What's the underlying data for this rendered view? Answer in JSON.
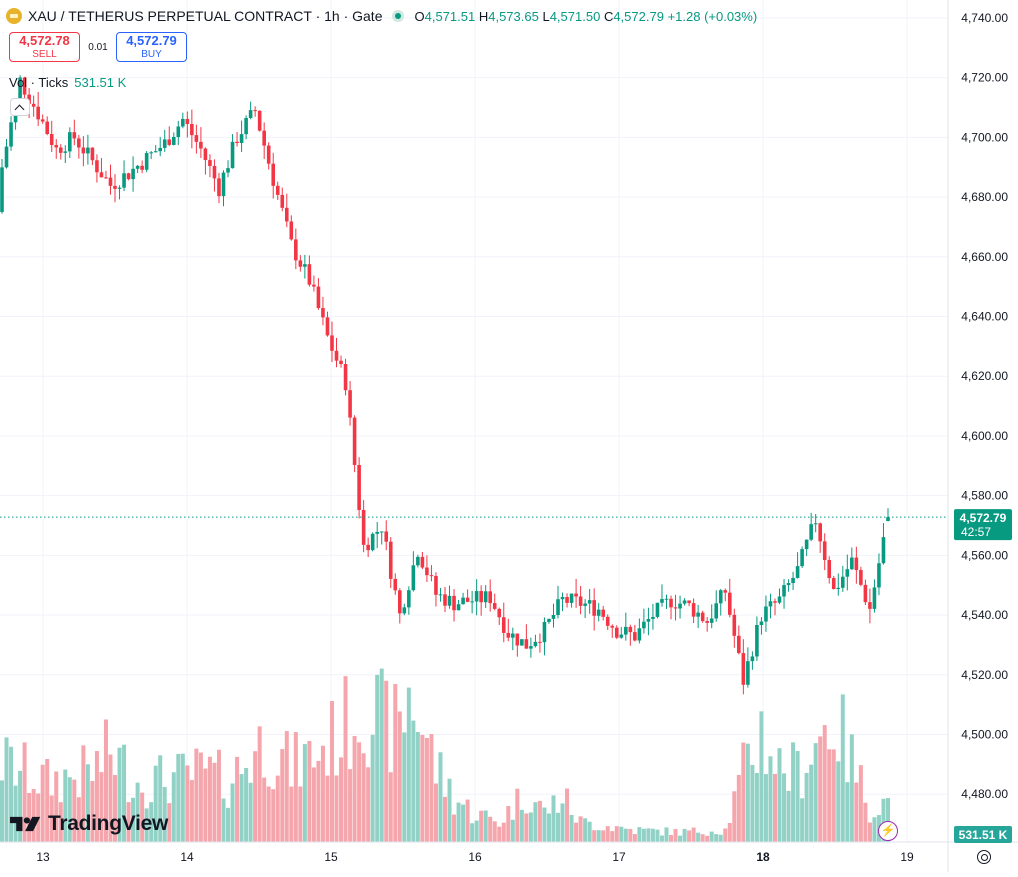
{
  "header": {
    "symbol": "XAU / TETHERUS PERPETUAL CONTRACT · 1h · Gate",
    "open_label": "O",
    "open": "4,571.51",
    "high_label": "H",
    "high": "4,573.65",
    "low_label": "L",
    "low": "4,571.50",
    "close_label": "C",
    "close": "4,572.79",
    "change": "+1.28 (+0.03%)"
  },
  "trade": {
    "sell_price": "4,572.78",
    "sell_label": "SELL",
    "spread": "0.01",
    "buy_price": "4,572.79",
    "buy_label": "BUY"
  },
  "volume_legend": {
    "label": "Vol · Ticks",
    "value": "531.51 K"
  },
  "price_tag": {
    "price": "4,572.79",
    "countdown": "42:57"
  },
  "volume_tag": "531.51 K",
  "branding": "TradingView",
  "colors": {
    "up": "#089981",
    "down": "#f23645",
    "up_vol": "#92d2c6",
    "down_vol": "#f5a6ac",
    "grid": "#f0f3fa"
  },
  "chart_data": {
    "type": "candlestick",
    "interval": "1h",
    "y_axis": {
      "ylim": [
        4464,
        4746
      ],
      "ticks": [
        4480,
        4500,
        4520,
        4540,
        4560,
        4580,
        4600,
        4620,
        4640,
        4660,
        4680,
        4700,
        4720,
        4740
      ],
      "tick_labels": [
        "4,480.00",
        "4,500.00",
        "4,520.00",
        "4,540.00",
        "4,560.00",
        "4,580.00",
        "4,600.00",
        "4,620.00",
        "4,640.00",
        "4,660.00",
        "4,680.00",
        "4,700.00",
        "4,720.00",
        "4,740.00"
      ]
    },
    "x_axis": {
      "labels": [
        "13",
        "14",
        "15",
        "16",
        "17",
        "18",
        "19"
      ]
    },
    "last_price": 4572.79,
    "series": [
      {
        "name": "price",
        "ohlc_keypoints": [
          [
            0,
            4675,
            4690
          ],
          [
            4,
            4715,
            4719
          ],
          [
            8,
            4712,
            4708
          ],
          [
            12,
            4700,
            4696
          ],
          [
            16,
            4693,
            4700
          ],
          [
            20,
            4685,
            4692
          ],
          [
            24,
            4692,
            4684
          ],
          [
            28,
            4684,
            4688
          ],
          [
            32,
            4688,
            4693
          ],
          [
            36,
            4693,
            4698
          ],
          [
            40,
            4698,
            4706
          ],
          [
            44,
            4706,
            4696
          ],
          [
            48,
            4696,
            4683
          ],
          [
            52,
            4683,
            4700
          ],
          [
            56,
            4700,
            4709
          ],
          [
            60,
            4709,
            4686
          ],
          [
            64,
            4686,
            4664
          ],
          [
            68,
            4664,
            4652
          ],
          [
            72,
            4652,
            4633
          ],
          [
            76,
            4633,
            4618
          ],
          [
            80,
            4618,
            4563
          ],
          [
            84,
            4563,
            4570
          ],
          [
            88,
            4570,
            4540
          ],
          [
            92,
            4540,
            4562
          ],
          [
            96,
            4562,
            4547
          ],
          [
            100,
            4547,
            4544
          ],
          [
            104,
            4544,
            4545
          ],
          [
            108,
            4545,
            4546
          ],
          [
            112,
            4546,
            4534
          ],
          [
            116,
            4534,
            4530
          ],
          [
            120,
            4530,
            4535
          ],
          [
            124,
            4535,
            4545
          ],
          [
            128,
            4545,
            4544
          ],
          [
            132,
            4544,
            4542
          ],
          [
            136,
            4542,
            4535
          ],
          [
            140,
            4535,
            4533
          ],
          [
            144,
            4533,
            4540
          ],
          [
            148,
            4540,
            4545
          ],
          [
            152,
            4545,
            4543
          ],
          [
            156,
            4543,
            4538
          ],
          [
            160,
            4538,
            4548
          ],
          [
            164,
            4548,
            4518
          ],
          [
            168,
            4518,
            4540
          ],
          [
            172,
            4540,
            4545
          ],
          [
            176,
            4545,
            4555
          ],
          [
            180,
            4555,
            4572
          ],
          [
            184,
            4572,
            4548
          ],
          [
            188,
            4548,
            4558
          ],
          [
            192,
            4558,
            4542
          ],
          [
            196,
            4542,
            4573
          ]
        ],
        "candle_count": 197
      },
      {
        "name": "Vol · Ticks",
        "volume_keypoints": [
          [
            0,
            80
          ],
          [
            10,
            60
          ],
          [
            20,
            70
          ],
          [
            24,
            90
          ],
          [
            30,
            60
          ],
          [
            40,
            65
          ],
          [
            45,
            70
          ],
          [
            50,
            60
          ],
          [
            58,
            100
          ],
          [
            64,
            75
          ],
          [
            70,
            90
          ],
          [
            75,
            110
          ],
          [
            80,
            140
          ],
          [
            84,
            120
          ],
          [
            88,
            110
          ],
          [
            90,
            150
          ],
          [
            92,
            130
          ],
          [
            96,
            75
          ],
          [
            100,
            45
          ],
          [
            104,
            30
          ],
          [
            110,
            20
          ],
          [
            116,
            50
          ],
          [
            120,
            30
          ],
          [
            124,
            45
          ],
          [
            128,
            20
          ],
          [
            140,
            12
          ],
          [
            150,
            10
          ],
          [
            160,
            12
          ],
          [
            164,
            70
          ],
          [
            168,
            110
          ],
          [
            172,
            75
          ],
          [
            176,
            70
          ],
          [
            180,
            100
          ],
          [
            184,
            125
          ],
          [
            188,
            80
          ],
          [
            192,
            35
          ],
          [
            196,
            40
          ]
        ],
        "volume_max": 531.51,
        "volume_last": 531.51
      }
    ]
  }
}
